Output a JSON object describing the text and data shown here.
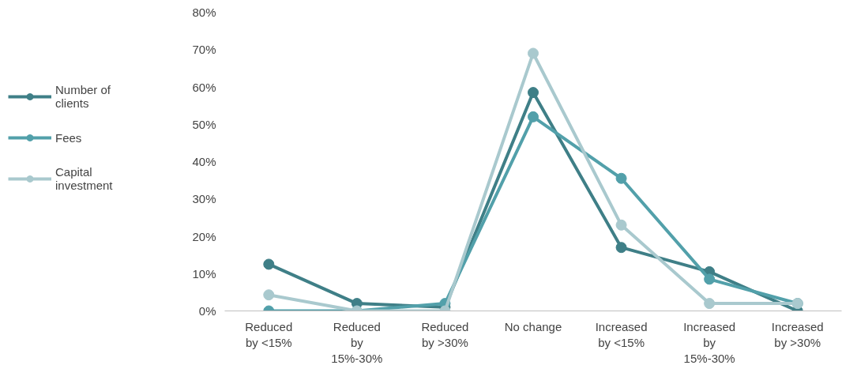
{
  "chart_data": {
    "type": "line",
    "categories": [
      "Reduced by <15%",
      "Reduced by 15%-30%",
      "Reduced by >30%",
      "No change",
      "Increased by <15%",
      "Increased by 15%-30%",
      "Increased by >30%"
    ],
    "series": [
      {
        "name": "Number of clients",
        "color": "#3f7f87",
        "values": [
          12.5,
          2,
          1,
          58.5,
          17,
          10.5,
          0
        ]
      },
      {
        "name": "Fees",
        "color": "#52a0aa",
        "values": [
          0,
          0,
          2,
          52,
          35.5,
          8.5,
          2
        ]
      },
      {
        "name": "Capital investment",
        "color": "#a9c9ce",
        "values": [
          4.3,
          0,
          0,
          69,
          23,
          2,
          2
        ]
      }
    ],
    "ylim": [
      0,
      80
    ],
    "yticks": [
      {
        "value": 0,
        "label": "0%"
      },
      {
        "value": 10,
        "label": "10%"
      },
      {
        "value": 20,
        "label": "20%"
      },
      {
        "value": 30,
        "label": "30%"
      },
      {
        "value": 40,
        "label": "40%"
      },
      {
        "value": 50,
        "label": "50%"
      },
      {
        "value": 60,
        "label": "60%"
      },
      {
        "value": 70,
        "label": "70%"
      },
      {
        "value": 80,
        "label": "80%"
      }
    ],
    "grid": false,
    "legend": "left",
    "marker": "circle",
    "line_style": "solid"
  }
}
